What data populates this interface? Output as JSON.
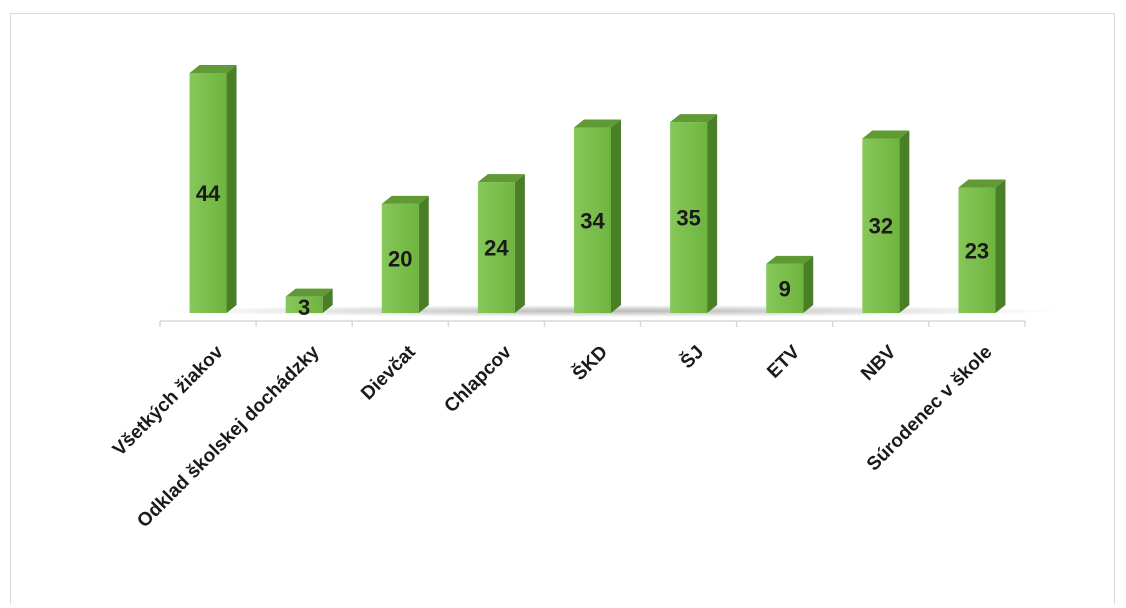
{
  "chart_data": {
    "type": "bar",
    "categories": [
      "Všetkých žiakov",
      "Odklad školskej dochádzky",
      "Dievčat",
      "Chlapcov",
      "ŠKD",
      "ŠJ",
      "ETV",
      "NBV",
      "Súrodenec v škole"
    ],
    "values": [
      44,
      3,
      20,
      24,
      34,
      35,
      9,
      32,
      23
    ],
    "title": "",
    "xlabel": "",
    "ylabel": "",
    "ylim": [
      0,
      44
    ],
    "grid": false,
    "legend": "none",
    "colors": {
      "front": "#6fb43f",
      "front_light": "#86c85a",
      "side": "#4a7f28",
      "top": "#5f9a35",
      "axis": "#d9d9d9"
    }
  }
}
